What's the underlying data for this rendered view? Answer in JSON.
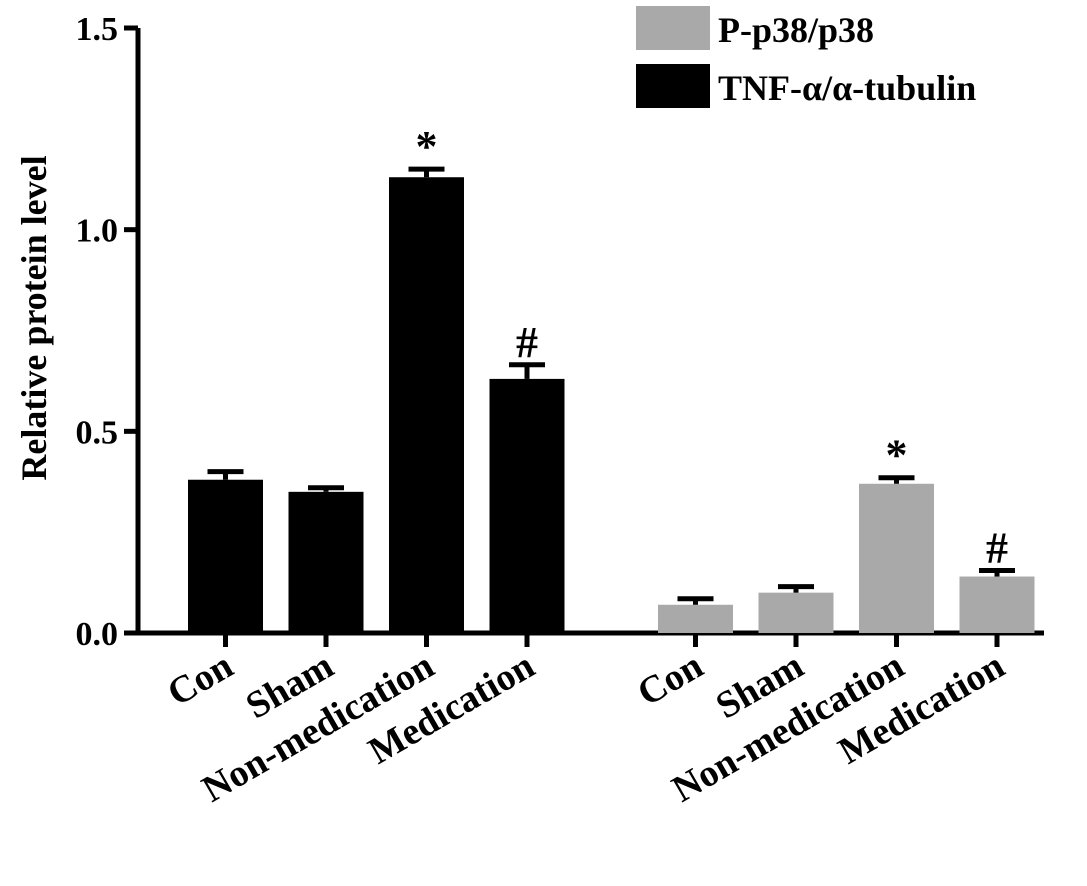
{
  "chart_data": {
    "type": "bar",
    "ylabel": "Relative protein level",
    "ylim": [
      0,
      1.5
    ],
    "yticks": [
      "0.0",
      "0.5",
      "1.0",
      "1.5"
    ],
    "legend_position": "top-right",
    "legend": [
      {
        "label": "P-p38/p38",
        "color": "#a9a9a9"
      },
      {
        "label": "TNF-α/α-tubulin",
        "color": "#000000"
      }
    ],
    "groups": [
      {
        "series": "TNF-α/α-tubulin",
        "color": "#000000",
        "categories": [
          "Con",
          "Sham",
          "Non-medication",
          "Medication"
        ],
        "values": [
          0.38,
          0.35,
          1.13,
          0.63
        ],
        "errors": [
          0.02,
          0.01,
          0.02,
          0.035
        ],
        "significance": [
          "",
          "",
          "*",
          "#"
        ]
      },
      {
        "series": "P-p38/p38",
        "color": "#a9a9a9",
        "categories": [
          "Con",
          "Sham",
          "Non-medication",
          "Medication"
        ],
        "values": [
          0.07,
          0.1,
          0.37,
          0.14
        ],
        "errors": [
          0.015,
          0.015,
          0.015,
          0.015
        ],
        "significance": [
          "",
          "",
          "*",
          "#"
        ]
      }
    ]
  }
}
